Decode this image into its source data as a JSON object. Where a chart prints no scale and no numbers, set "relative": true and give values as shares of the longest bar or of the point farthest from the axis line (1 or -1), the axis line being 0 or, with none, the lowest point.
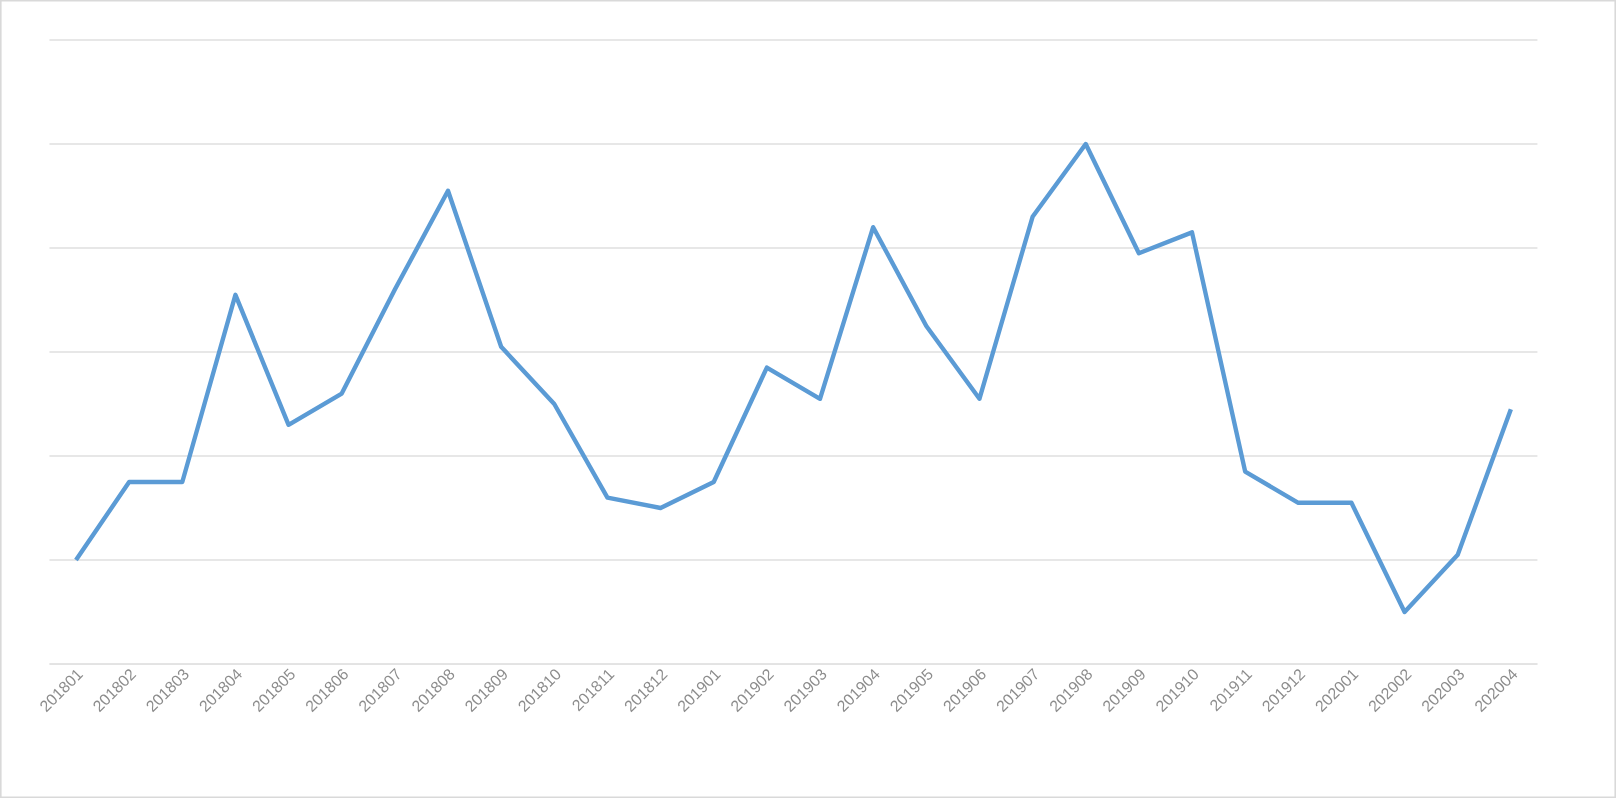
{
  "chart_data": {
    "type": "line",
    "relative": true,
    "grid": "y",
    "marker": "none",
    "line_style": "solid",
    "categories": [
      "201801",
      "201802",
      "201803",
      "201804",
      "201805",
      "201806",
      "201807",
      "201808",
      "201809",
      "201810",
      "201811",
      "201812",
      "201901",
      "201902",
      "201903",
      "201904",
      "201905",
      "201906",
      "201907",
      "201908",
      "201909",
      "201910",
      "201911",
      "201912",
      "202001",
      "202002",
      "202003",
      "202004"
    ],
    "series": [
      {
        "color": "#5b9bd5",
        "values": [
          0.2,
          0.35,
          0.35,
          0.71,
          0.46,
          0.52,
          0.72,
          0.91,
          0.61,
          0.5,
          0.32,
          0.3,
          0.35,
          0.57,
          0.51,
          0.84,
          0.65,
          0.51,
          0.86,
          1,
          0.79,
          0.83,
          0.37,
          0.31,
          0.31,
          0.1,
          0.21,
          0.49
        ]
      }
    ]
  }
}
